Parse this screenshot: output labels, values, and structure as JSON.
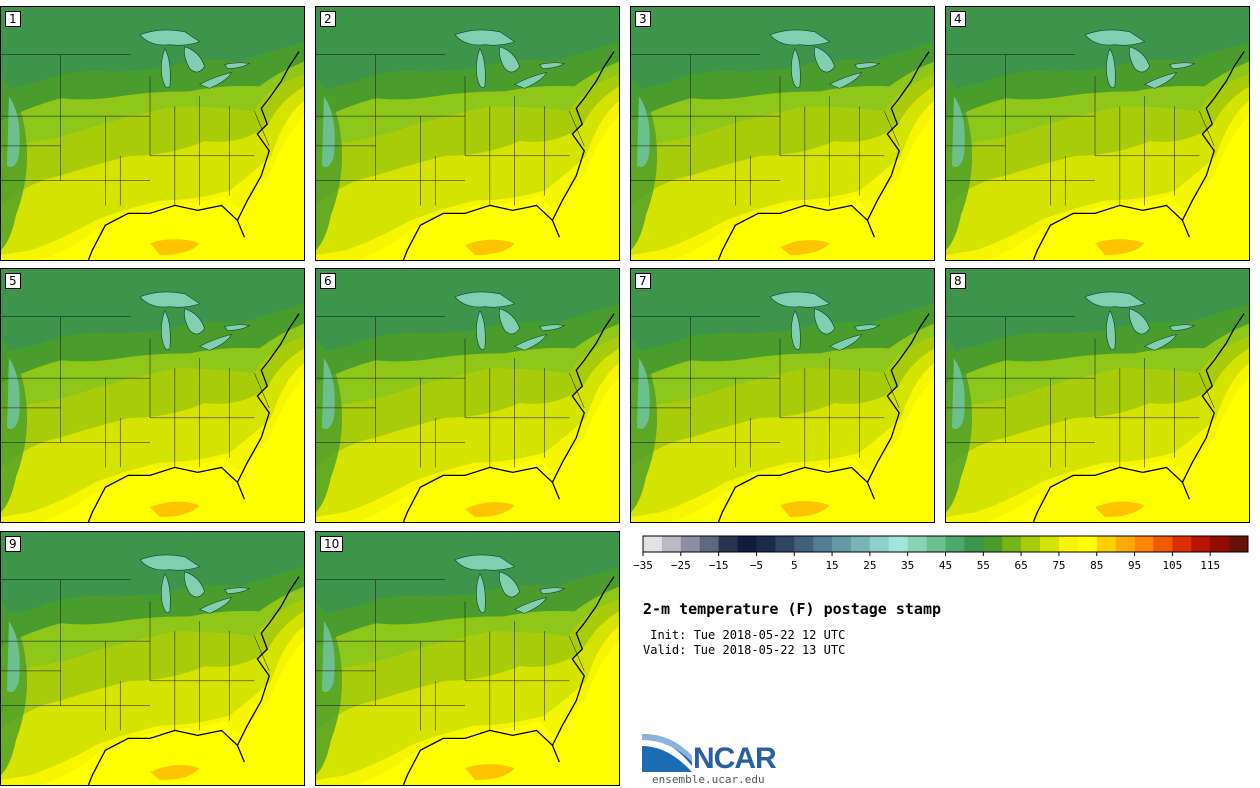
{
  "panels": [
    "1",
    "2",
    "3",
    "4",
    "5",
    "6",
    "7",
    "8",
    "9",
    "10"
  ],
  "title": "2-m temperature (F) postage stamp",
  "init": " Init: Tue 2018-05-22 12 UTC",
  "valid": "Valid: Tue 2018-05-22 13 UTC",
  "colorbar": {
    "tick_labels": [
      "−35",
      "−25",
      "−15",
      "−5",
      "5",
      "15",
      "25",
      "35",
      "45",
      "55",
      "65",
      "75",
      "85",
      "95",
      "105",
      "115"
    ],
    "colors": [
      "#e1e1e6",
      "#b9b9c6",
      "#8d8ea3",
      "#5f6680",
      "#2a3252",
      "#121b3b",
      "#1a2a4a",
      "#2c4564",
      "#3f617e",
      "#527d93",
      "#6699a6",
      "#79b2b7",
      "#8fcfca",
      "#a2e4d8",
      "#88d4b2",
      "#6cc08e",
      "#4fa86b",
      "#3d954b",
      "#4a9d2c",
      "#77b417",
      "#a9cc0a",
      "#d5e300",
      "#f6f600",
      "#ffff00",
      "#ffd000",
      "#ffaa00",
      "#ff8500",
      "#f25a00",
      "#db2f00",
      "#b81600",
      "#8f0e00",
      "#6a1008"
    ]
  },
  "map_colors": {
    "ocean": "#ffff00",
    "ocean_warm": "#ffc400",
    "gulf_coast": "#f6f600",
    "south": "#d5e300",
    "central": "#a9cc0a",
    "plains": "#8fc61a",
    "north": "#4a9d2c",
    "far_north": "#3d954b",
    "lakes": "#7fcfb0",
    "mountains": "#6cc08e"
  },
  "logo": {
    "text": "NCAR",
    "url": "ensemble.ucar.edu"
  }
}
